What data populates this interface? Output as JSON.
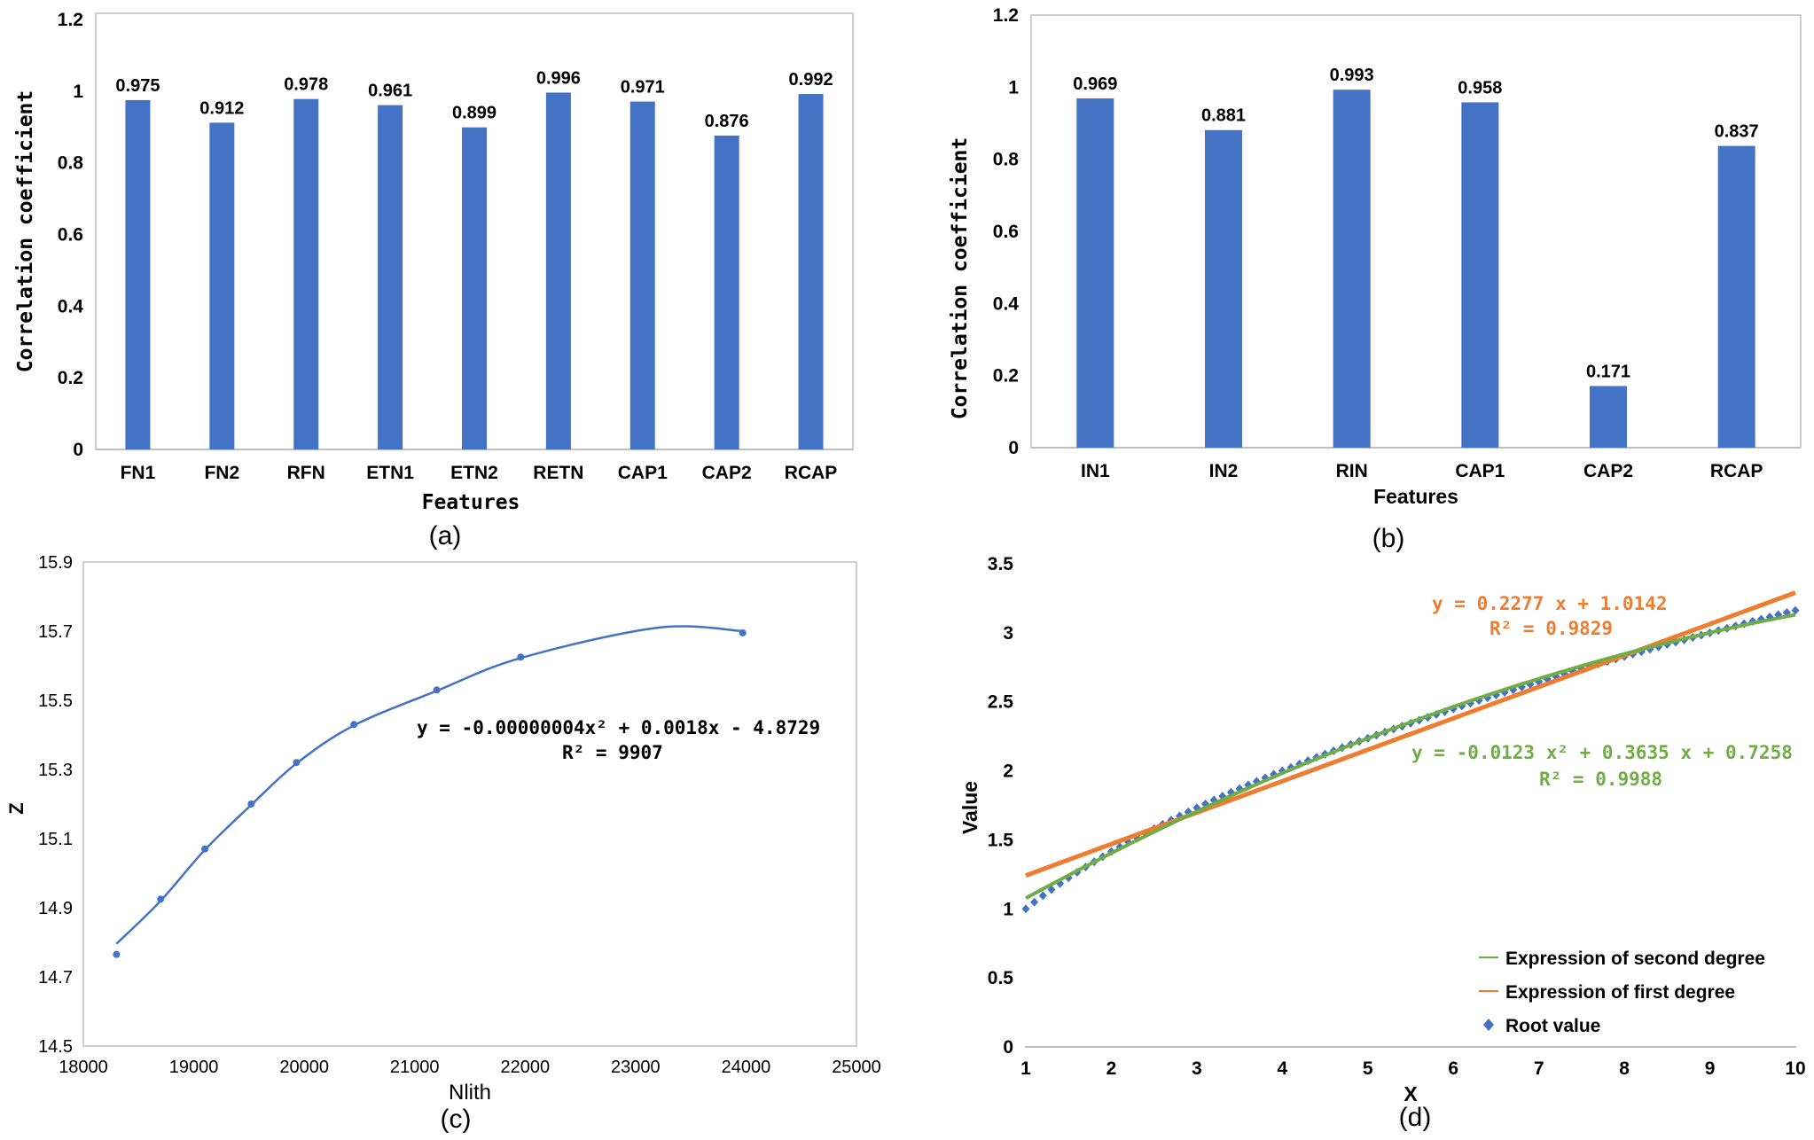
{
  "colors": {
    "bar": "#4472C4",
    "highlight": "#FF0000",
    "first_degree": "#ED7D31",
    "second_degree": "#70AD47",
    "root": "#4472C4",
    "axis": "#BFBFBF"
  },
  "panels": {
    "a": "(a)",
    "b": "(b)",
    "c": "(c)",
    "d": "(d)"
  },
  "chart_data": [
    {
      "id": "a",
      "type": "bar",
      "title": "",
      "xlabel": "Features",
      "ylabel": "Correlation coefficient",
      "ylim": [
        0,
        1.2
      ],
      "yticks": [
        "0",
        "0.2",
        "0.4",
        "0.6",
        "0.8",
        "1",
        "1.2"
      ],
      "categories": [
        "FN1",
        "FN2",
        "RFN",
        "ETN1",
        "ETN2",
        "RETN",
        "CAP1",
        "CAP2",
        "RCAP"
      ],
      "values": [
        0.975,
        0.912,
        0.978,
        0.961,
        0.899,
        0.996,
        0.971,
        0.876,
        0.992
      ],
      "labels": [
        "0.975",
        "0.912",
        "0.978",
        "0.961",
        "0.899",
        "0.996",
        "0.971",
        "0.876",
        "0.992"
      ],
      "highlight_index": 5
    },
    {
      "id": "b",
      "type": "bar",
      "title": "",
      "xlabel": "Features",
      "ylabel": "Correlation coefficient",
      "ylim": [
        0,
        1.2
      ],
      "yticks": [
        "0",
        "0.2",
        "0.4",
        "0.6",
        "0.8",
        "1",
        "1.2"
      ],
      "categories": [
        "IN1",
        "IN2",
        "RIN",
        "CAP1",
        "CAP2",
        "RCAP"
      ],
      "values": [
        0.969,
        0.881,
        0.993,
        0.958,
        0.171,
        0.837
      ],
      "labels": [
        "0.969",
        "0.881",
        "0.993",
        "0.958",
        "0.171",
        "0.837"
      ],
      "highlight_index": 2
    },
    {
      "id": "c",
      "type": "scatter",
      "title": "",
      "xlabel": "Nlith",
      "ylabel": "Z",
      "xlim": [
        18000,
        25000
      ],
      "ylim": [
        14.5,
        15.9
      ],
      "xticks": [
        "18000",
        "19000",
        "20000",
        "21000",
        "22000",
        "23000",
        "24000",
        "25000"
      ],
      "yticks": [
        "14.5",
        "14.7",
        "14.9",
        "15.1",
        "15.3",
        "15.5",
        "15.7",
        "15.9"
      ],
      "x": [
        18300,
        18700,
        19100,
        19520,
        19930,
        20450,
        21200,
        21960,
        23970
      ],
      "y": [
        14.765,
        14.925,
        15.07,
        15.2,
        15.32,
        15.43,
        15.53,
        15.625,
        15.695
      ],
      "trendline": {
        "a": -4e-08,
        "b": 0.0018,
        "c": -4.8729,
        "x_range": [
          18300,
          23970
        ]
      },
      "equation": "y = -0.00000004x² + 0.0018x - 4.8729",
      "r2": "R² = 9907"
    },
    {
      "id": "d",
      "type": "line",
      "title": "",
      "xlabel": "X",
      "ylabel": "Value",
      "xlim": [
        1,
        10
      ],
      "ylim": [
        0,
        3.5
      ],
      "xticks": [
        "1",
        "2",
        "3",
        "4",
        "5",
        "6",
        "7",
        "8",
        "9",
        "10"
      ],
      "yticks": [
        "0",
        "0.5",
        "1",
        "1.5",
        "2",
        "2.5",
        "3",
        "3.5"
      ],
      "series": [
        {
          "name": "Expression of second degree",
          "kind": "poly2",
          "a": -0.0123,
          "b": 0.3635,
          "c": 0.7258
        },
        {
          "name": "Expression of first degree",
          "kind": "linear",
          "m": 0.2277,
          "c": 1.0142
        },
        {
          "name": "Root value",
          "kind": "sqrt",
          "step": 0.1
        }
      ],
      "eq_first": "y = 0.2277 x + 1.0142",
      "r2_first": "R² = 0.9829",
      "eq_second": "y = -0.0123 x² + 0.3635 x + 0.7258",
      "r2_second": "R² = 0.9988"
    }
  ]
}
